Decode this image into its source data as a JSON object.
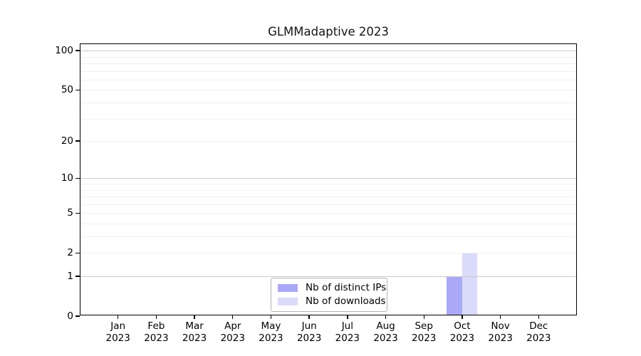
{
  "chart_data": {
    "type": "bar",
    "title": "GLMMadaptive 2023",
    "year": "2023",
    "categories": [
      "Jan",
      "Feb",
      "Mar",
      "Apr",
      "May",
      "Jun",
      "Jul",
      "Aug",
      "Sep",
      "Oct",
      "Nov",
      "Dec"
    ],
    "series": [
      {
        "name": "Nb of distinct IPs",
        "color": "#a9a9f7",
        "values": [
          0,
          0,
          0,
          0,
          0,
          0,
          0,
          0,
          0,
          1,
          0,
          0
        ]
      },
      {
        "name": "Nb of downloads",
        "color": "#dadafa",
        "values": [
          0,
          0,
          0,
          0,
          0,
          0,
          0,
          0,
          0,
          2,
          0,
          0
        ]
      }
    ],
    "xlabel": "",
    "ylabel": "",
    "yscale": "log1p",
    "ylim": [
      0,
      113
    ],
    "yticks": [
      0,
      1,
      2,
      5,
      10,
      20,
      50,
      100
    ],
    "major_gridlines": [
      1,
      10,
      100
    ],
    "minor_gridlines": [
      2,
      3,
      4,
      5,
      6,
      7,
      8,
      9,
      20,
      30,
      40,
      50,
      60,
      70,
      80,
      90
    ],
    "grid": true,
    "legend_position": "bottom-center",
    "axis_color": "#000000",
    "major_grid_color": "#cbcbcb",
    "minor_grid_color": "#f0f0f0"
  }
}
